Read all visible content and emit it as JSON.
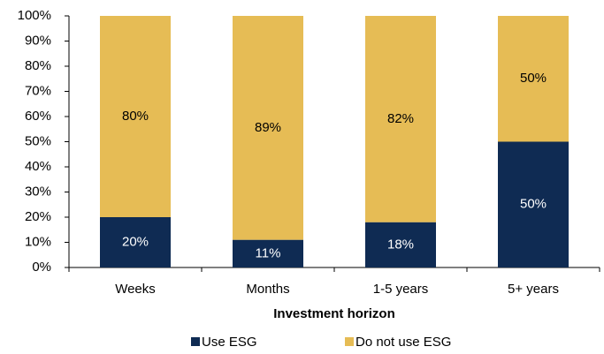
{
  "chart_data": {
    "type": "stacked_bar",
    "x_label": "Investment horizon",
    "categories": [
      "Weeks",
      "Months",
      "1-5 years",
      "5+ years"
    ],
    "series": [
      {
        "name": "Use ESG",
        "color": "#0f2b53",
        "values": [
          20,
          11,
          18,
          50
        ],
        "value_labels": [
          "20%",
          "11%",
          "18%",
          "50%"
        ]
      },
      {
        "name": "Do not use ESG",
        "color": "#e6bc55",
        "values": [
          80,
          89,
          82,
          50
        ],
        "value_labels": [
          "80%",
          "89%",
          "82%",
          "50%"
        ]
      }
    ],
    "ylim": [
      0,
      100
    ],
    "yticks": [
      {
        "value": 0,
        "label": "0%"
      },
      {
        "value": 10,
        "label": "10%"
      },
      {
        "value": 20,
        "label": "20%"
      },
      {
        "value": 30,
        "label": "30%"
      },
      {
        "value": 40,
        "label": "40%"
      },
      {
        "value": 50,
        "label": "50%"
      },
      {
        "value": 60,
        "label": "60%"
      },
      {
        "value": 70,
        "label": "70%"
      },
      {
        "value": 80,
        "label": "80%"
      },
      {
        "value": 90,
        "label": "90%"
      },
      {
        "value": 100,
        "label": "100%"
      }
    ],
    "grid": false,
    "legend": "bottom"
  }
}
